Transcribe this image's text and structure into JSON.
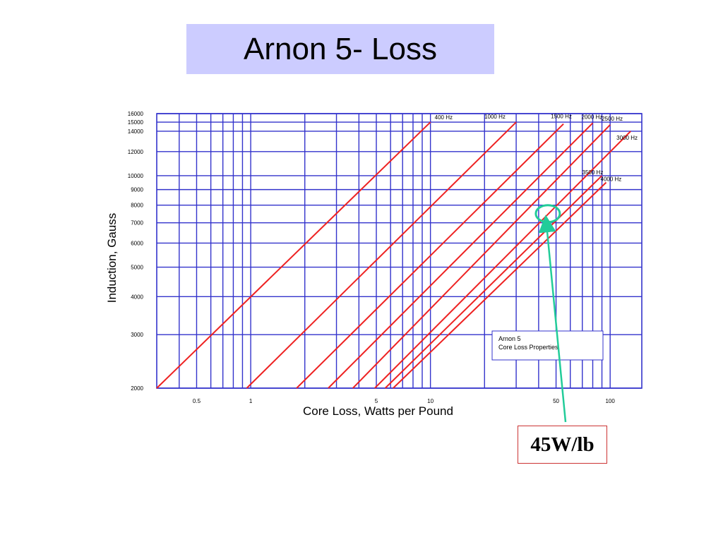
{
  "slide": {
    "title": "Arnon 5- Loss",
    "callout": "45W/lb"
  },
  "colors": {
    "grid": "#3333cc",
    "curve": "#ee2222",
    "title_bg": "#ccccff",
    "callout_border": "#cc3333",
    "arrow": "#22cc99"
  },
  "chart_data": {
    "type": "line",
    "x_scale": "log",
    "y_scale": "log",
    "title": "",
    "xlabel": "Core Loss, Watts per Pound",
    "ylabel": "Induction, Gauss",
    "xlim": [
      0.3,
      150
    ],
    "ylim": [
      2000,
      16000
    ],
    "grid": true,
    "x_tick_labels": [
      {
        "value": 0.5,
        "label": "0.5"
      },
      {
        "value": 1,
        "label": "1"
      },
      {
        "value": 5,
        "label": "5"
      },
      {
        "value": 10,
        "label": "10"
      },
      {
        "value": 50,
        "label": "50"
      },
      {
        "value": 100,
        "label": "100"
      }
    ],
    "x_minor_gridlines": [
      0.4,
      0.6,
      0.7,
      0.8,
      0.9,
      2,
      3,
      4,
      6,
      7,
      8,
      9,
      20,
      30,
      40,
      60,
      70,
      80,
      90
    ],
    "y_tick_labels": [
      {
        "value": 2000,
        "label": "2000"
      },
      {
        "value": 3000,
        "label": "3000"
      },
      {
        "value": 4000,
        "label": "4000"
      },
      {
        "value": 5000,
        "label": "5000"
      },
      {
        "value": 6000,
        "label": "6000"
      },
      {
        "value": 7000,
        "label": "7000"
      },
      {
        "value": 8000,
        "label": "8000"
      },
      {
        "value": 9000,
        "label": "9000"
      },
      {
        "value": 10000,
        "label": "10000"
      },
      {
        "value": 12000,
        "label": "12000"
      },
      {
        "value": 14000,
        "label": "14000"
      },
      {
        "value": 15000,
        "label": "15000"
      },
      {
        "value": 16000,
        "label": "16000"
      }
    ],
    "series": [
      {
        "name": "400 Hz",
        "points": [
          [
            0.3,
            2000
          ],
          [
            10.0,
            15000
          ]
        ]
      },
      {
        "name": "1000 Hz",
        "points": [
          [
            0.95,
            2000
          ],
          [
            30.0,
            15000
          ]
        ]
      },
      {
        "name": "1500 Hz",
        "points": [
          [
            1.8,
            2000
          ],
          [
            55.0,
            14800
          ]
        ]
      },
      {
        "name": "2000 Hz",
        "points": [
          [
            2.7,
            2000
          ],
          [
            80.0,
            14900
          ]
        ]
      },
      {
        "name": "2500 Hz",
        "points": [
          [
            3.7,
            2000
          ],
          [
            100.0,
            14700
          ]
        ]
      },
      {
        "name": "3000 Hz",
        "points": [
          [
            4.9,
            2000
          ],
          [
            130.0,
            14000
          ]
        ]
      },
      {
        "name": "3500 Hz",
        "points": [
          [
            5.6,
            2000
          ],
          [
            90.0,
            10000
          ]
        ]
      },
      {
        "name": "4000 Hz",
        "points": [
          [
            6.2,
            2000
          ],
          [
            95.0,
            9500
          ]
        ]
      }
    ],
    "legend_box": {
      "line1": "Arnon 5",
      "line2": "Core Loss Properties"
    },
    "annotation": {
      "label": "45W/lb",
      "x": 45,
      "y": 7500
    }
  }
}
